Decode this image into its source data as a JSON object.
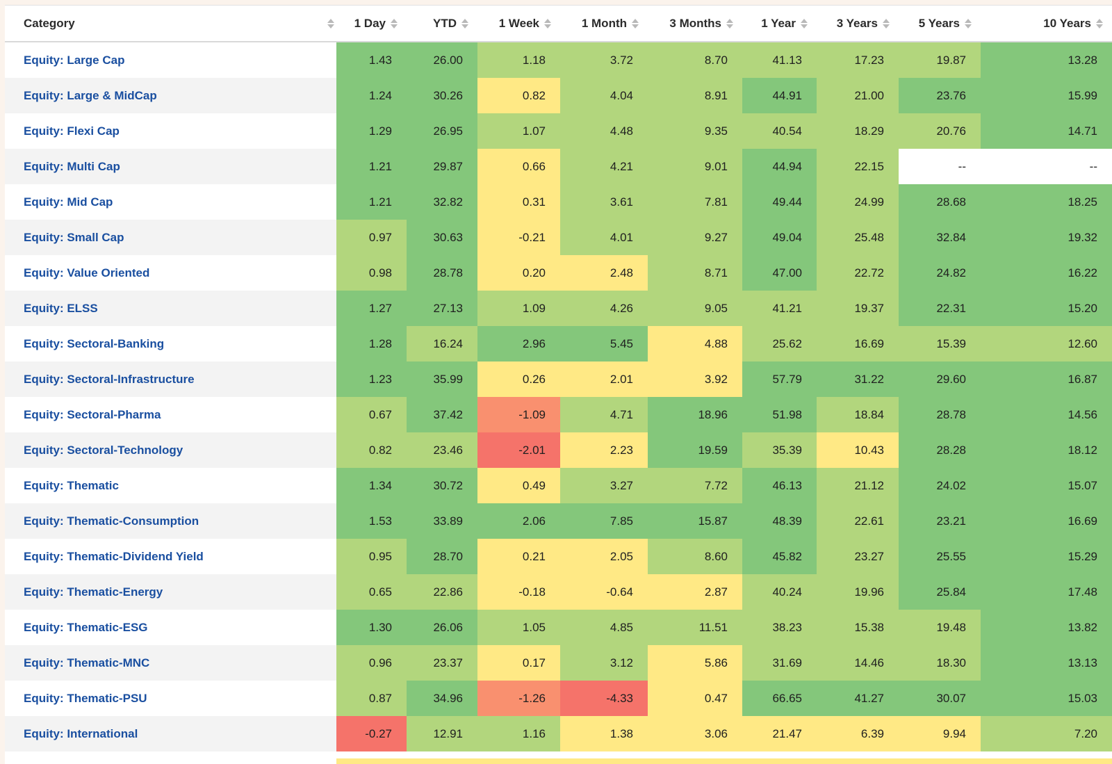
{
  "columns": [
    "Category",
    "1 Day",
    "YTD",
    "1 Week",
    "1 Month",
    "3 Months",
    "1 Year",
    "3 Years",
    "5 Years",
    "10 Years"
  ],
  "colors": {
    "dark_green": "#84c77b",
    "light_green": "#b2d67d",
    "yellow": "#ffe985",
    "orange": "#f9906f",
    "red": "#f5736a",
    "blank": "#ffffff"
  },
  "rows": [
    {
      "category": "Equity: Large Cap",
      "values": [
        "1.43",
        "26.00",
        "1.18",
        "3.72",
        "8.70",
        "41.13",
        "17.23",
        "19.87",
        "13.28"
      ],
      "colors": [
        "G",
        "G",
        "L",
        "L",
        "L",
        "L",
        "L",
        "L",
        "G"
      ]
    },
    {
      "category": "Equity: Large & MidCap",
      "values": [
        "1.24",
        "30.26",
        "0.82",
        "4.04",
        "8.91",
        "44.91",
        "21.00",
        "23.76",
        "15.99"
      ],
      "colors": [
        "G",
        "G",
        "Y",
        "L",
        "L",
        "G",
        "L",
        "G",
        "G"
      ]
    },
    {
      "category": "Equity: Flexi Cap",
      "values": [
        "1.29",
        "26.95",
        "1.07",
        "4.48",
        "9.35",
        "40.54",
        "18.29",
        "20.76",
        "14.71"
      ],
      "colors": [
        "G",
        "G",
        "L",
        "L",
        "L",
        "L",
        "L",
        "L",
        "G"
      ]
    },
    {
      "category": "Equity: Multi Cap",
      "values": [
        "1.21",
        "29.87",
        "0.66",
        "4.21",
        "9.01",
        "44.94",
        "22.15",
        "--",
        "--"
      ],
      "colors": [
        "G",
        "G",
        "Y",
        "L",
        "L",
        "G",
        "L",
        "W",
        "W"
      ]
    },
    {
      "category": "Equity: Mid Cap",
      "values": [
        "1.21",
        "32.82",
        "0.31",
        "3.61",
        "7.81",
        "49.44",
        "24.99",
        "28.68",
        "18.25"
      ],
      "colors": [
        "G",
        "G",
        "Y",
        "L",
        "L",
        "G",
        "L",
        "G",
        "G"
      ]
    },
    {
      "category": "Equity: Small Cap",
      "values": [
        "0.97",
        "30.63",
        "-0.21",
        "4.01",
        "9.27",
        "49.04",
        "25.48",
        "32.84",
        "19.32"
      ],
      "colors": [
        "L",
        "G",
        "Y",
        "L",
        "L",
        "G",
        "L",
        "G",
        "G"
      ]
    },
    {
      "category": "Equity: Value Oriented",
      "values": [
        "0.98",
        "28.78",
        "0.20",
        "2.48",
        "8.71",
        "47.00",
        "22.72",
        "24.82",
        "16.22"
      ],
      "colors": [
        "L",
        "G",
        "Y",
        "Y",
        "L",
        "G",
        "L",
        "G",
        "G"
      ]
    },
    {
      "category": "Equity: ELSS",
      "values": [
        "1.27",
        "27.13",
        "1.09",
        "4.26",
        "9.05",
        "41.21",
        "19.37",
        "22.31",
        "15.20"
      ],
      "colors": [
        "G",
        "G",
        "L",
        "L",
        "L",
        "L",
        "L",
        "G",
        "G"
      ]
    },
    {
      "category": "Equity: Sectoral-Banking",
      "values": [
        "1.28",
        "16.24",
        "2.96",
        "5.45",
        "4.88",
        "25.62",
        "16.69",
        "15.39",
        "12.60"
      ],
      "colors": [
        "G",
        "L",
        "G",
        "G",
        "Y",
        "L",
        "L",
        "L",
        "L"
      ]
    },
    {
      "category": "Equity: Sectoral-Infrastructure",
      "values": [
        "1.23",
        "35.99",
        "0.26",
        "2.01",
        "3.92",
        "57.79",
        "31.22",
        "29.60",
        "16.87"
      ],
      "colors": [
        "G",
        "G",
        "Y",
        "Y",
        "Y",
        "G",
        "G",
        "G",
        "G"
      ]
    },
    {
      "category": "Equity: Sectoral-Pharma",
      "values": [
        "0.67",
        "37.42",
        "-1.09",
        "4.71",
        "18.96",
        "51.98",
        "18.84",
        "28.78",
        "14.56"
      ],
      "colors": [
        "L",
        "G",
        "O",
        "L",
        "G",
        "G",
        "L",
        "G",
        "G"
      ]
    },
    {
      "category": "Equity: Sectoral-Technology",
      "values": [
        "0.82",
        "23.46",
        "-2.01",
        "2.23",
        "19.59",
        "35.39",
        "10.43",
        "28.28",
        "18.12"
      ],
      "colors": [
        "L",
        "L",
        "R",
        "Y",
        "G",
        "L",
        "Y",
        "G",
        "G"
      ]
    },
    {
      "category": "Equity: Thematic",
      "values": [
        "1.34",
        "30.72",
        "0.49",
        "3.27",
        "7.72",
        "46.13",
        "21.12",
        "24.02",
        "15.07"
      ],
      "colors": [
        "G",
        "G",
        "Y",
        "L",
        "L",
        "G",
        "L",
        "G",
        "G"
      ]
    },
    {
      "category": "Equity: Thematic-Consumption",
      "values": [
        "1.53",
        "33.89",
        "2.06",
        "7.85",
        "15.87",
        "48.39",
        "22.61",
        "23.21",
        "16.69"
      ],
      "colors": [
        "G",
        "G",
        "G",
        "G",
        "G",
        "G",
        "L",
        "G",
        "G"
      ]
    },
    {
      "category": "Equity: Thematic-Dividend Yield",
      "values": [
        "0.95",
        "28.70",
        "0.21",
        "2.05",
        "8.60",
        "45.82",
        "23.27",
        "25.55",
        "15.29"
      ],
      "colors": [
        "L",
        "G",
        "Y",
        "Y",
        "L",
        "G",
        "L",
        "G",
        "G"
      ]
    },
    {
      "category": "Equity: Thematic-Energy",
      "values": [
        "0.65",
        "22.86",
        "-0.18",
        "-0.64",
        "2.87",
        "40.24",
        "19.96",
        "25.84",
        "17.48"
      ],
      "colors": [
        "L",
        "L",
        "Y",
        "Y",
        "Y",
        "L",
        "L",
        "G",
        "G"
      ]
    },
    {
      "category": "Equity: Thematic-ESG",
      "values": [
        "1.30",
        "26.06",
        "1.05",
        "4.85",
        "11.51",
        "38.23",
        "15.38",
        "19.48",
        "13.82"
      ],
      "colors": [
        "G",
        "G",
        "L",
        "L",
        "L",
        "L",
        "L",
        "L",
        "G"
      ]
    },
    {
      "category": "Equity: Thematic-MNC",
      "values": [
        "0.96",
        "23.37",
        "0.17",
        "3.12",
        "5.86",
        "31.69",
        "14.46",
        "18.30",
        "13.13"
      ],
      "colors": [
        "L",
        "L",
        "Y",
        "L",
        "Y",
        "L",
        "L",
        "L",
        "G"
      ]
    },
    {
      "category": "Equity: Thematic-PSU",
      "values": [
        "0.87",
        "34.96",
        "-1.26",
        "-4.33",
        "0.47",
        "66.65",
        "41.27",
        "30.07",
        "15.03"
      ],
      "colors": [
        "L",
        "G",
        "O",
        "R",
        "Y",
        "G",
        "G",
        "G",
        "G"
      ]
    },
    {
      "category": "Equity: International",
      "values": [
        "-0.27",
        "12.91",
        "1.16",
        "1.38",
        "3.06",
        "21.47",
        "6.39",
        "9.94",
        "7.20"
      ],
      "colors": [
        "R",
        "L",
        "L",
        "Y",
        "Y",
        "Y",
        "Y",
        "Y",
        "L"
      ]
    }
  ]
}
